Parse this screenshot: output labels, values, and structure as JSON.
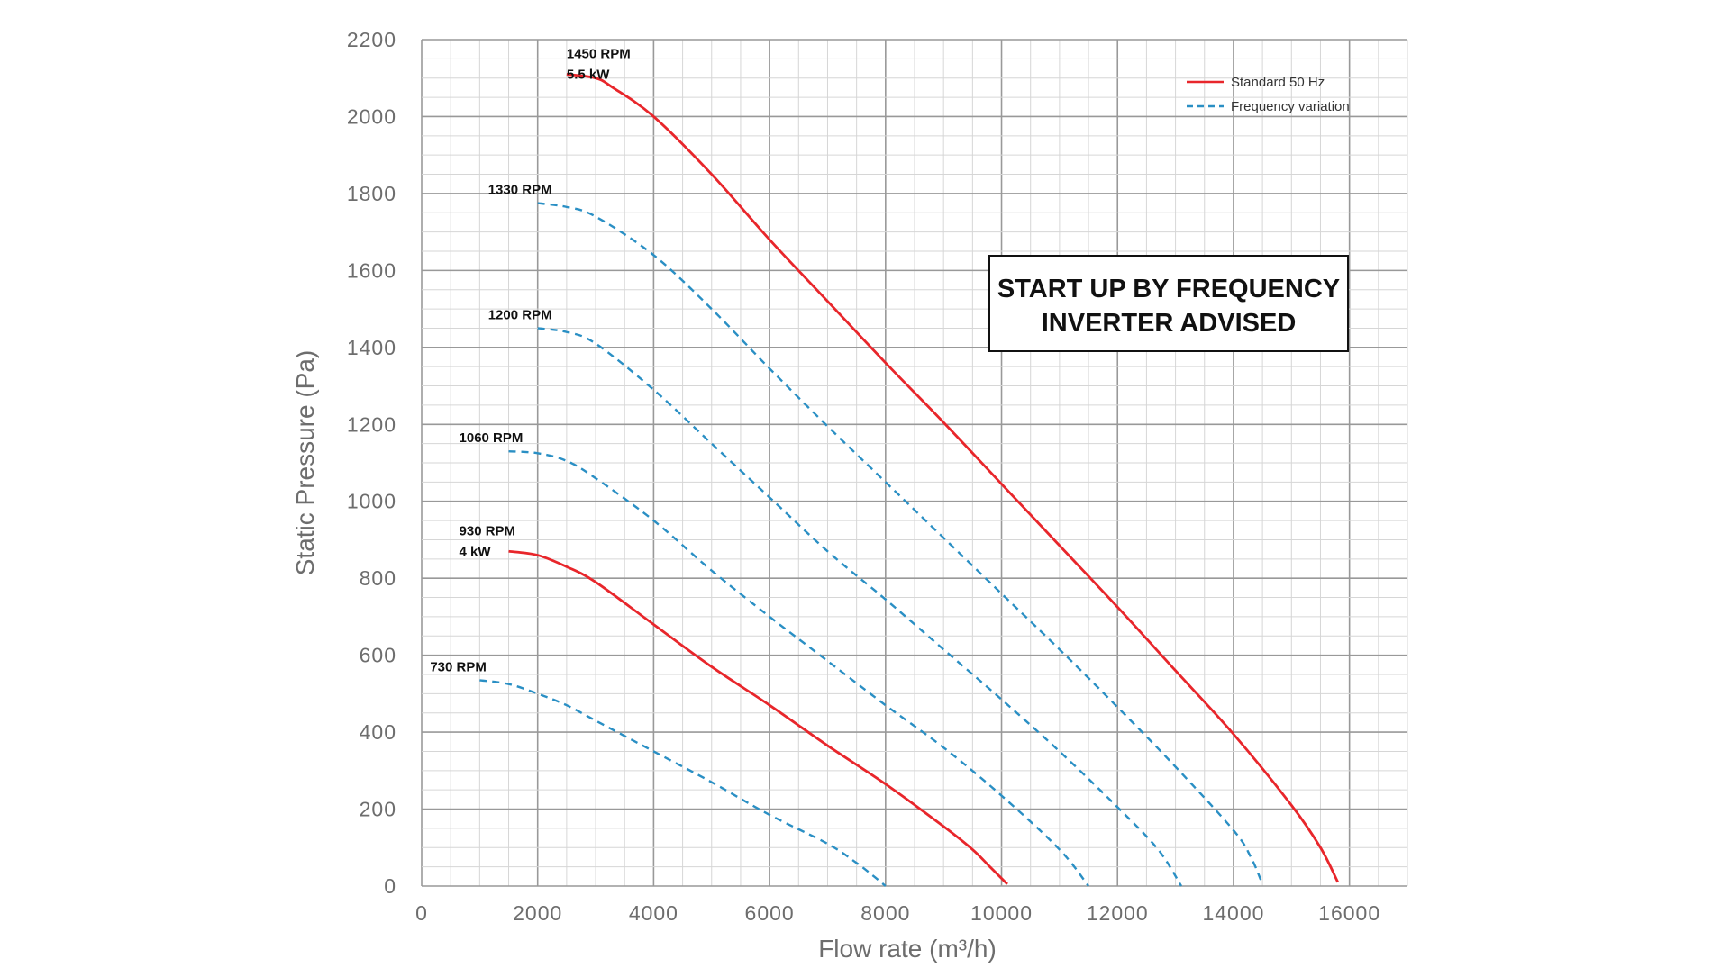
{
  "chart_data": {
    "type": "line",
    "xlabel": "Flow rate (m³/h)",
    "ylabel": "Static Pressure (Pa)",
    "xlim": [
      0,
      17000
    ],
    "ylim": [
      0,
      2200
    ],
    "x_ticks": [
      0,
      2000,
      4000,
      6000,
      8000,
      10000,
      12000,
      14000,
      16000
    ],
    "y_ticks": [
      0,
      200,
      400,
      600,
      800,
      1000,
      1200,
      1400,
      1600,
      1800,
      2000,
      2200
    ],
    "x_tick_labels": [
      "0",
      "2000",
      "4000",
      "6000",
      "8000",
      "10000",
      "12000",
      "14000",
      "16000"
    ],
    "y_tick_labels": [
      "0",
      "200",
      "400",
      "600",
      "800",
      "1000",
      "1200",
      "1400",
      "1600",
      "1800",
      "2000",
      "2200"
    ],
    "grid": true,
    "legend_position": "top-right",
    "legend": [
      {
        "label": "Standard 50 Hz",
        "color": "#e8262b",
        "style": "solid"
      },
      {
        "label": "Frequency variation",
        "color": "#2a8fc4",
        "style": "dashed"
      }
    ],
    "annotation": {
      "lines": [
        "START UP BY FREQUENCY",
        "INVERTER ADVISED"
      ]
    },
    "series": [
      {
        "style": "solid",
        "color": "#e8262b",
        "labels": [
          "1450 RPM",
          "5.5 kW"
        ],
        "x": [
          2500,
          3000,
          3300,
          4000,
          5000,
          6000,
          7000,
          8000,
          9000,
          10000,
          11000,
          12000,
          13000,
          14000,
          15000,
          15500,
          15800
        ],
        "y": [
          2110,
          2100,
          2075,
          2000,
          1850,
          1680,
          1520,
          1360,
          1205,
          1045,
          885,
          725,
          560,
          395,
          210,
          100,
          10
        ]
      },
      {
        "style": "dashed",
        "color": "#2a8fc4",
        "labels": [
          "1330 RPM"
        ],
        "x": [
          2000,
          2500,
          3000,
          4000,
          5000,
          6000,
          7000,
          8000,
          9000,
          10000,
          11000,
          12000,
          13000,
          14000,
          14300,
          14500
        ],
        "y": [
          1775,
          1765,
          1740,
          1640,
          1500,
          1345,
          1195,
          1050,
          905,
          760,
          615,
          465,
          310,
          145,
          75,
          5
        ]
      },
      {
        "style": "dashed",
        "color": "#2a8fc4",
        "labels": [
          "1200 RPM"
        ],
        "x": [
          2000,
          2500,
          3000,
          4000,
          5000,
          6000,
          7000,
          8000,
          9000,
          10000,
          11000,
          12000,
          12700,
          13100
        ],
        "y": [
          1450,
          1440,
          1410,
          1290,
          1150,
          1010,
          870,
          745,
          615,
          485,
          350,
          205,
          95,
          0
        ]
      },
      {
        "style": "dashed",
        "color": "#2a8fc4",
        "labels": [
          "1060 RPM"
        ],
        "x": [
          1500,
          2000,
          2500,
          3000,
          4000,
          5000,
          6000,
          7000,
          8000,
          9000,
          10000,
          11000,
          11500
        ],
        "y": [
          1130,
          1125,
          1105,
          1060,
          950,
          820,
          700,
          585,
          470,
          360,
          235,
          95,
          0
        ]
      },
      {
        "style": "solid",
        "color": "#e8262b",
        "labels": [
          "930 RPM",
          "4 kW"
        ],
        "x": [
          1500,
          2000,
          2500,
          3000,
          4000,
          5000,
          6000,
          7000,
          8000,
          9000,
          9500,
          9800,
          10100
        ],
        "y": [
          870,
          860,
          830,
          790,
          680,
          570,
          470,
          365,
          265,
          155,
          95,
          50,
          5
        ]
      },
      {
        "style": "dashed",
        "color": "#2a8fc4",
        "labels": [
          "730 RPM"
        ],
        "x": [
          1000,
          1500,
          2000,
          2500,
          3000,
          4000,
          5000,
          6000,
          7000,
          7500,
          7800,
          8000
        ],
        "y": [
          535,
          525,
          500,
          470,
          430,
          350,
          270,
          185,
          110,
          60,
          25,
          0
        ]
      }
    ]
  }
}
